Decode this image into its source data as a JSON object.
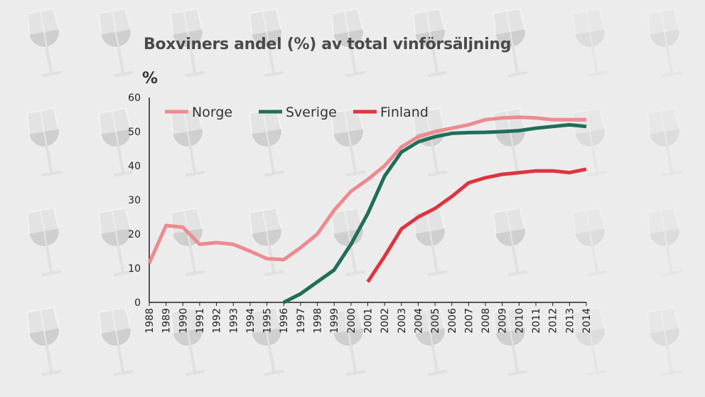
{
  "chart_data": {
    "type": "line",
    "title": "Boxviners andel (%) av total vinförsäljning",
    "ylabel": "%",
    "xlabel": "",
    "ylim": [
      0,
      60
    ],
    "yticks": [
      0,
      10,
      20,
      30,
      40,
      50,
      60
    ],
    "x": [
      1988,
      1989,
      1990,
      1991,
      1992,
      1993,
      1994,
      1995,
      1996,
      1997,
      1998,
      1999,
      2000,
      2001,
      2002,
      2003,
      2004,
      2005,
      2006,
      2007,
      2008,
      2009,
      2010,
      2011,
      2012,
      2013,
      2014
    ],
    "legend_position": "top-left",
    "grid": false,
    "series": [
      {
        "name": "Norge",
        "color": "#ee8a8f",
        "values": [
          11.5,
          22.5,
          22.0,
          17.0,
          17.5,
          17.0,
          15.0,
          12.8,
          12.5,
          16.0,
          20.0,
          27.0,
          32.5,
          36.0,
          40.0,
          45.5,
          48.5,
          50.0,
          51.0,
          52.0,
          53.5,
          54.0,
          54.2,
          54.0,
          53.5,
          53.5,
          53.5
        ]
      },
      {
        "name": "Sverige",
        "color": "#1f6e5a",
        "values": [
          null,
          null,
          null,
          null,
          null,
          null,
          null,
          null,
          0,
          2.5,
          6.0,
          9.5,
          17.0,
          26.0,
          37.0,
          44.0,
          47.0,
          48.5,
          49.5,
          49.7,
          49.8,
          50.0,
          50.3,
          51.0,
          51.5,
          52.0,
          51.5
        ]
      },
      {
        "name": "Finland",
        "color": "#de3440",
        "values": [
          null,
          null,
          null,
          null,
          null,
          null,
          null,
          null,
          null,
          null,
          null,
          null,
          null,
          6.0,
          13.5,
          21.5,
          25.0,
          27.5,
          31.0,
          35.0,
          36.5,
          37.5,
          38.0,
          38.5,
          38.5,
          38.0,
          39.0
        ]
      }
    ]
  }
}
